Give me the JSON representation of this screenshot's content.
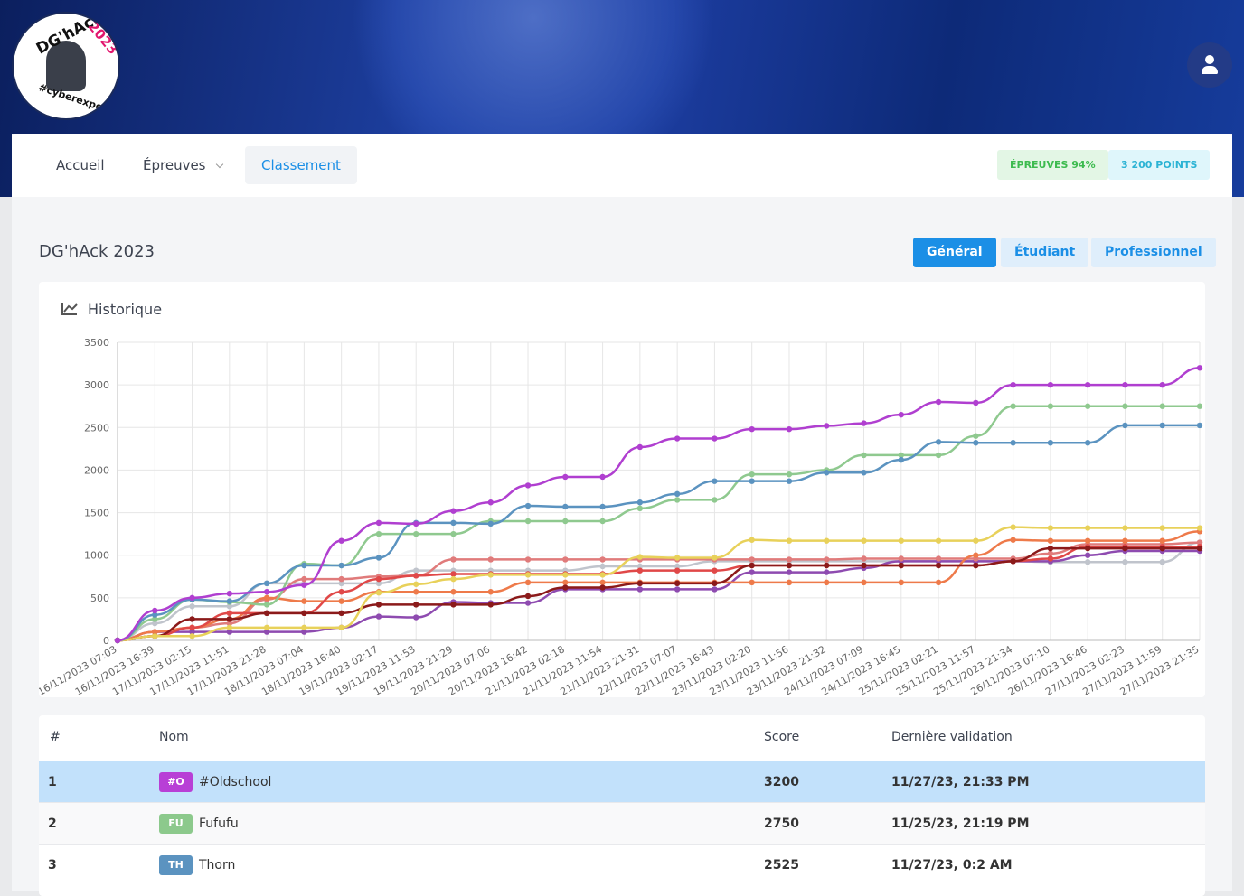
{
  "header": {
    "logo_texts": [
      "DG'hAck",
      "2023",
      "#cyberexpert"
    ]
  },
  "nav": {
    "items": [
      "Accueil",
      "Épreuves",
      "Classement"
    ],
    "badges": [
      "ÉPREUVES 94%",
      "3 200 POINTS"
    ]
  },
  "page_title": "DG'hAck 2023",
  "tabs": [
    "Général",
    "Étudiant",
    "Professionnel"
  ],
  "chart_data": {
    "type": "line",
    "title": "Historique",
    "categories": [
      "16/11/2023 07:03",
      "16/11/2023 16:39",
      "17/11/2023 02:15",
      "17/11/2023 11:51",
      "17/11/2023 21:28",
      "18/11/2023 07:04",
      "18/11/2023 16:40",
      "19/11/2023 02:17",
      "19/11/2023 11:53",
      "19/11/2023 21:29",
      "20/11/2023 07:06",
      "20/11/2023 16:42",
      "21/11/2023 02:18",
      "21/11/2023 11:54",
      "21/11/2023 21:31",
      "22/11/2023 07:07",
      "22/11/2023 16:43",
      "23/11/2023 02:20",
      "23/11/2023 11:56",
      "23/11/2023 21:32",
      "24/11/2023 07:09",
      "24/11/2023 16:45",
      "25/11/2023 02:21",
      "25/11/2023 11:57",
      "25/11/2023 21:34",
      "26/11/2023 07:10",
      "26/11/2023 16:46",
      "27/11/2023 02:23",
      "27/11/2023 11:59",
      "27/11/2023 21:35"
    ],
    "series": [
      {
        "color": "#c0c4cc",
        "values": [
          0,
          200,
          400,
          400,
          670,
          670,
          670,
          670,
          820,
          820,
          820,
          820,
          820,
          870,
          870,
          870,
          930,
          930,
          930,
          930,
          930,
          930,
          930,
          930,
          930,
          920,
          920,
          920,
          920,
          1150
        ]
      },
      {
        "color": "#8e4bb0",
        "values": [
          0,
          100,
          100,
          100,
          100,
          100,
          150,
          280,
          270,
          450,
          440,
          440,
          600,
          600,
          600,
          600,
          600,
          800,
          800,
          800,
          850,
          930,
          930,
          930,
          930,
          930,
          1000,
          1050,
          1050,
          1050
        ]
      },
      {
        "color": "#e07b7b",
        "values": [
          0,
          100,
          150,
          200,
          480,
          720,
          720,
          750,
          760,
          950,
          950,
          950,
          950,
          950,
          950,
          950,
          950,
          950,
          950,
          950,
          960,
          960,
          960,
          960,
          960,
          1020,
          1130,
          1130,
          1130,
          1150
        ]
      },
      {
        "color": "#ee7a4a",
        "values": [
          0,
          100,
          150,
          250,
          500,
          460,
          460,
          570,
          570,
          570,
          570,
          680,
          680,
          680,
          680,
          680,
          680,
          680,
          680,
          680,
          680,
          680,
          680,
          1000,
          1180,
          1170,
          1170,
          1170,
          1170,
          1280
        ]
      },
      {
        "color": "#e04848",
        "values": [
          0,
          50,
          150,
          320,
          320,
          320,
          570,
          720,
          760,
          780,
          780,
          780,
          780,
          780,
          820,
          820,
          820,
          880,
          880,
          880,
          880,
          880,
          880,
          880,
          930,
          960,
          1100,
          1100,
          1100,
          1100
        ]
      },
      {
        "color": "#8b1a1a",
        "values": [
          0,
          50,
          250,
          250,
          320,
          320,
          320,
          420,
          420,
          420,
          420,
          520,
          620,
          620,
          670,
          670,
          670,
          880,
          880,
          880,
          880,
          880,
          880,
          880,
          930,
          1080,
          1080,
          1080,
          1080,
          1080
        ]
      },
      {
        "color": "#e8d15a",
        "values": [
          0,
          50,
          50,
          150,
          150,
          150,
          150,
          560,
          660,
          720,
          770,
          770,
          770,
          770,
          980,
          970,
          970,
          1180,
          1170,
          1170,
          1170,
          1170,
          1170,
          1170,
          1330,
          1320,
          1320,
          1320,
          1320,
          1320
        ]
      },
      {
        "color": "#8fc98f",
        "values": [
          0,
          250,
          480,
          450,
          420,
          900,
          880,
          1250,
          1250,
          1250,
          1400,
          1400,
          1400,
          1400,
          1550,
          1650,
          1650,
          1950,
          1950,
          2000,
          2175,
          2175,
          2175,
          2400,
          2750,
          2750,
          2750,
          2750,
          2750,
          2750
        ]
      },
      {
        "color": "#5b93c0",
        "values": [
          0,
          300,
          480,
          460,
          670,
          880,
          880,
          970,
          1380,
          1380,
          1370,
          1580,
          1570,
          1570,
          1620,
          1720,
          1870,
          1870,
          1870,
          1970,
          1970,
          2120,
          2330,
          2320,
          2320,
          2320,
          2320,
          2525,
          2525,
          2525
        ]
      },
      {
        "color": "#b03fd0",
        "values": [
          0,
          350,
          500,
          550,
          570,
          650,
          1170,
          1380,
          1370,
          1520,
          1620,
          1820,
          1920,
          1920,
          2270,
          2370,
          2370,
          2480,
          2480,
          2520,
          2550,
          2650,
          2800,
          2790,
          3000,
          3000,
          3000,
          3000,
          3000,
          3200
        ]
      }
    ],
    "ylim": [
      0,
      3500
    ],
    "yticks": [
      0,
      500,
      1000,
      1500,
      2000,
      2500,
      3000,
      3500
    ],
    "grid": true
  },
  "table": {
    "columns": [
      "#",
      "Nom",
      "Score",
      "Dernière validation"
    ],
    "rows": [
      {
        "rank": 1,
        "initials": "#O",
        "name": "#Oldschool",
        "score": 3200,
        "date": "11/27/23, 21:33 PM",
        "color": "#b83fd6"
      },
      {
        "rank": 2,
        "initials": "FU",
        "name": "Fufufu",
        "score": 2750,
        "date": "11/25/23, 21:19 PM",
        "color": "#8cc98c"
      },
      {
        "rank": 3,
        "initials": "TH",
        "name": "Thorn",
        "score": 2525,
        "date": "11/27/23, 0:2 AM",
        "color": "#5b93c0"
      }
    ]
  }
}
